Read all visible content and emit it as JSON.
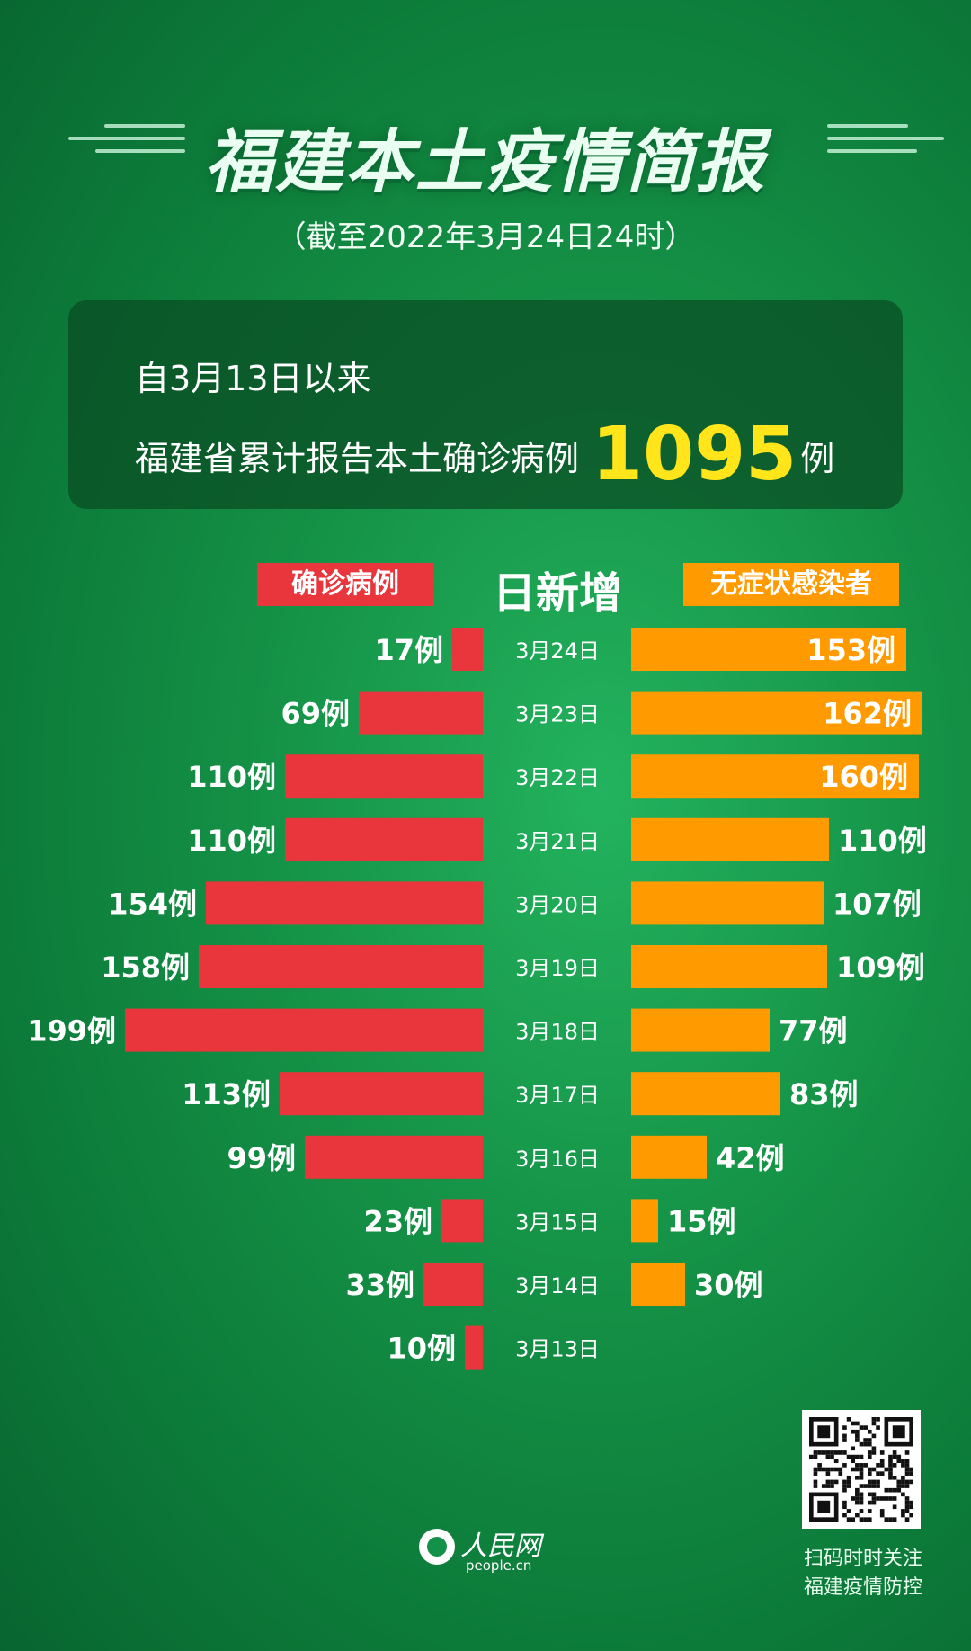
{
  "header": {
    "title": "福建本土疫情简报",
    "subtitle": "（截至2022年3月24日24时）"
  },
  "summary": {
    "line1": "自3月13日以来",
    "line2_prefix": "福建省累计报告本土确诊病例",
    "total_value": "1095",
    "total_unit": "例"
  },
  "legend": {
    "confirmed_label": "确诊病例",
    "center_label": "日新增",
    "asymptomatic_label": "无症状感染者"
  },
  "colors": {
    "confirmed": "#e8363c",
    "asymptomatic": "#ff9a00",
    "highlight": "#ffe51a",
    "background": "#159347"
  },
  "chart_data": {
    "type": "bar",
    "orientation": "horizontal-diverging",
    "unit_suffix": "例",
    "categories": [
      "3月24日",
      "3月23日",
      "3月22日",
      "3月21日",
      "3月20日",
      "3月19日",
      "3月18日",
      "3月17日",
      "3月16日",
      "3月15日",
      "3月14日",
      "3月13日"
    ],
    "series": [
      {
        "name": "确诊病例",
        "side": "left",
        "values": [
          17,
          69,
          110,
          110,
          154,
          158,
          199,
          113,
          99,
          23,
          33,
          10
        ]
      },
      {
        "name": "无症状感染者",
        "side": "right",
        "values": [
          153,
          162,
          160,
          110,
          107,
          109,
          77,
          83,
          42,
          15,
          30,
          null
        ]
      }
    ],
    "labels_inside_bar_threshold": 150
  },
  "footer": {
    "logo_text": "人民网",
    "logo_domain": "people.cn",
    "qr_caption_line1": "扫码时时关注",
    "qr_caption_line2": "福建疫情防控",
    "qr_icon": "qr-code-icon"
  }
}
